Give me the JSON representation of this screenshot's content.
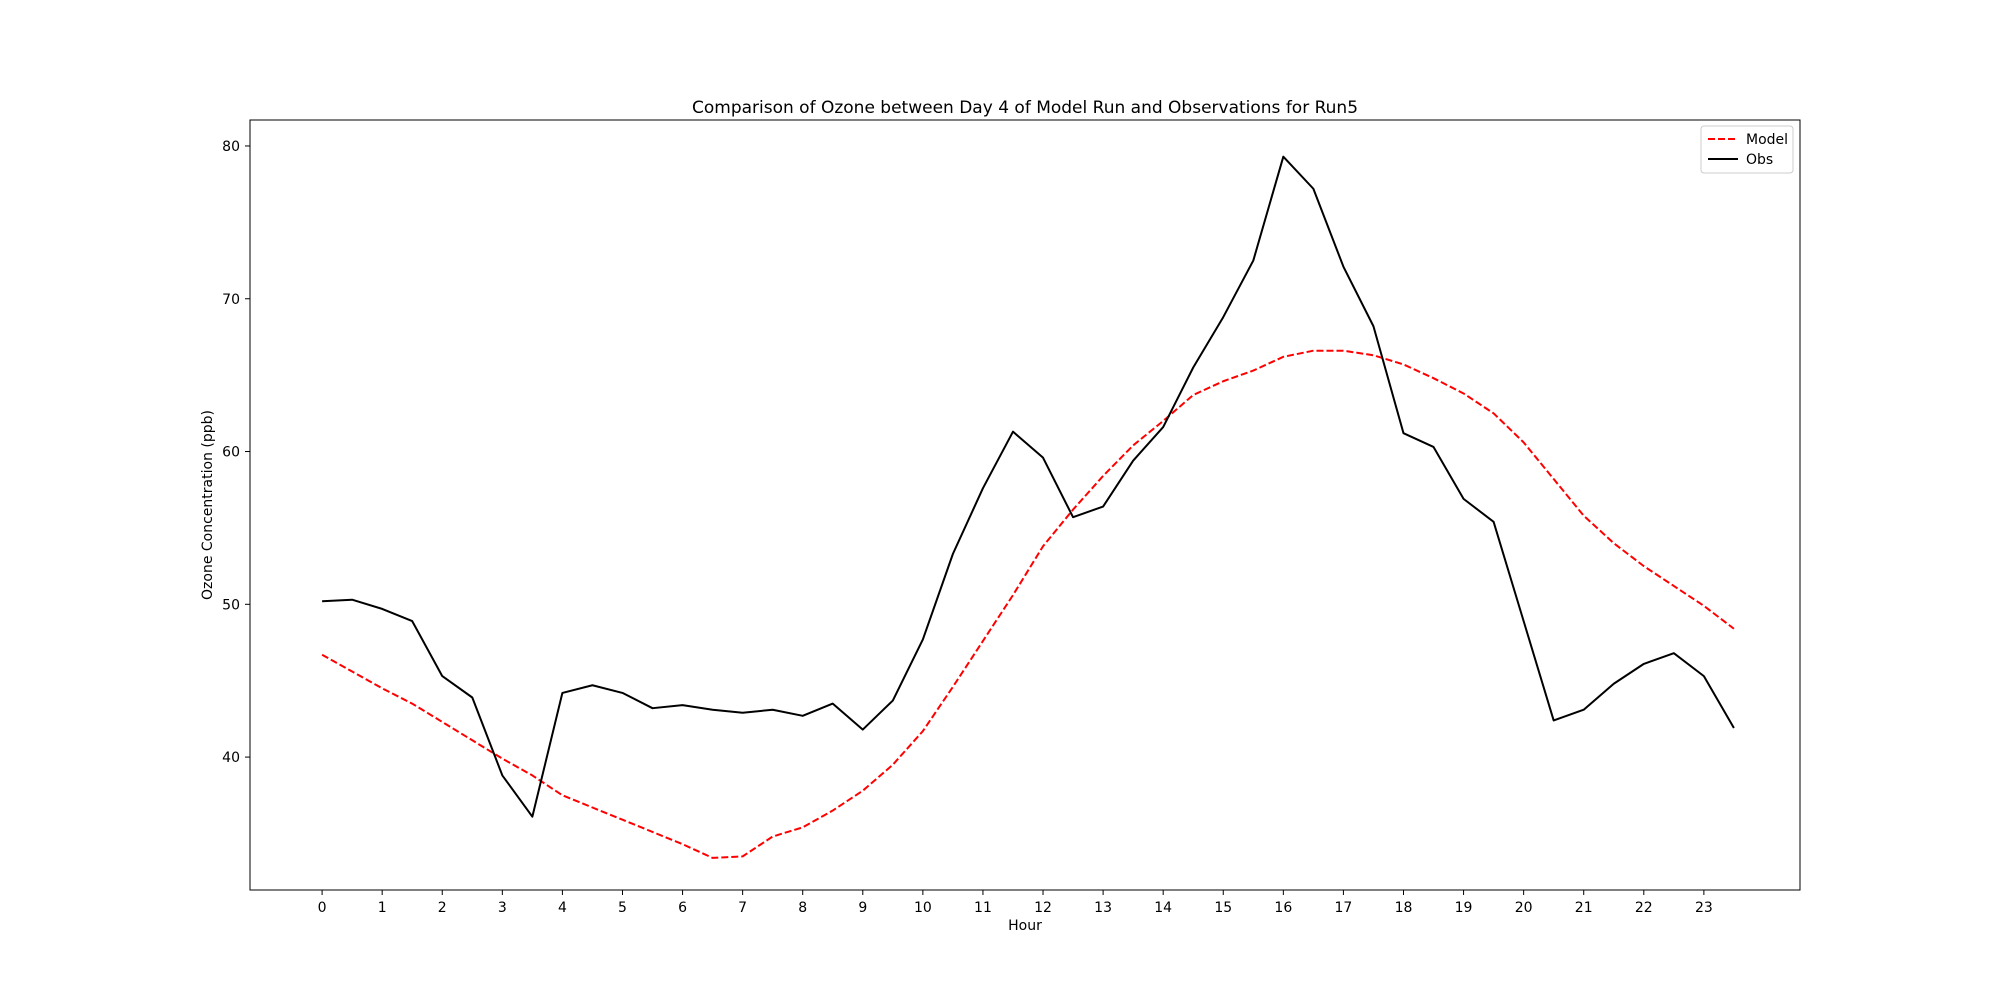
{
  "chart_data": {
    "type": "line",
    "title": "Comparison of Ozone between Day 4 of Model Run and Observations for Run5",
    "xlabel": "Hour",
    "ylabel": "Ozone Concentration (ppb)",
    "xlim": [
      -1.2,
      24.6
    ],
    "ylim": [
      31.3,
      81.7
    ],
    "xticks": [
      0,
      1,
      2,
      3,
      4,
      5,
      6,
      7,
      8,
      9,
      10,
      11,
      12,
      13,
      14,
      15,
      16,
      17,
      18,
      19,
      20,
      21,
      22,
      23
    ],
    "yticks": [
      40,
      50,
      60,
      70,
      80
    ],
    "grid": false,
    "legend_position": "top-right",
    "x": [
      0,
      0.5,
      1,
      1.5,
      2,
      2.5,
      3,
      3.5,
      4,
      4.5,
      5,
      5.5,
      6,
      6.5,
      7,
      7.5,
      8,
      8.5,
      9,
      9.5,
      10,
      10.5,
      11,
      11.5,
      12,
      12.5,
      13,
      13.5,
      14,
      14.5,
      15,
      15.5,
      16,
      16.5,
      17,
      17.5,
      18,
      18.5,
      19,
      19.5,
      20,
      20.5,
      21,
      21.5,
      22,
      22.5,
      23,
      23.5
    ],
    "series": [
      {
        "name": "Model",
        "color": "#ff0000",
        "style": "dashed",
        "values": [
          46.7,
          45.6,
          44.5,
          43.5,
          42.3,
          41.1,
          39.9,
          38.8,
          37.5,
          36.7,
          35.9,
          35.1,
          34.3,
          33.4,
          33.5,
          34.8,
          35.4,
          36.5,
          37.8,
          39.5,
          41.7,
          44.6,
          47.6,
          50.6,
          53.8,
          56.2,
          58.4,
          60.4,
          62.0,
          63.7,
          64.6,
          65.3,
          66.2,
          66.6,
          66.6,
          66.3,
          65.7,
          64.8,
          63.8,
          62.5,
          60.6,
          58.2,
          55.8,
          54.0,
          52.5,
          51.2,
          49.9,
          48.4
        ]
      },
      {
        "name": "Obs",
        "color": "#000000",
        "style": "solid",
        "values": [
          50.2,
          50.3,
          49.7,
          48.9,
          45.3,
          43.9,
          38.8,
          36.1,
          44.2,
          44.7,
          44.2,
          43.2,
          43.4,
          43.1,
          42.9,
          43.1,
          42.7,
          43.5,
          41.8,
          43.7,
          47.7,
          53.3,
          57.6,
          61.3,
          59.6,
          55.7,
          56.4,
          59.4,
          61.6,
          65.5,
          68.8,
          72.5,
          79.3,
          77.2,
          72.1,
          68.2,
          61.2,
          60.3,
          56.9,
          55.4,
          48.9,
          42.4,
          43.1,
          44.8,
          46.1,
          46.8,
          45.3,
          41.9
        ]
      }
    ]
  }
}
